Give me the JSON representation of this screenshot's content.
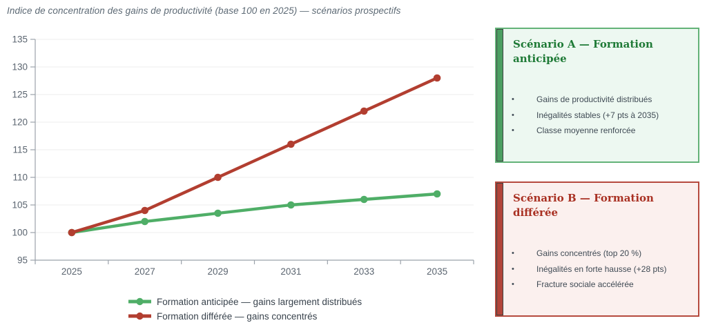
{
  "chart_data": {
    "type": "line",
    "title": "Indice de concentration des gains de productivité (base 100 en 2025) — scénarios prospectifs",
    "categories": [
      "2025",
      "2027",
      "2029",
      "2031",
      "2033",
      "2035"
    ],
    "series": [
      {
        "name": "Formation anticipée — gains largement distribués",
        "values": [
          100,
          102,
          103.5,
          105,
          106,
          107
        ],
        "color": "#4fae67"
      },
      {
        "name": "Formation différée — gains concentrés",
        "values": [
          100,
          104,
          110,
          116,
          122,
          128
        ],
        "color": "#b23e30"
      }
    ],
    "ylim": [
      95,
      135
    ],
    "ytick_step": 5,
    "grid": true,
    "legend_position": "bottom-center"
  },
  "colors": {
    "grid": "#ececec",
    "axis": "#9ba2ab",
    "tick_labels": "#5b6570",
    "legend_text": "#39434d",
    "chart_title": "#5d6a75"
  },
  "ui": {
    "bullet": "•"
  },
  "panels": [
    {
      "id": "scenario-a",
      "title": "Scénario A — Formation anticipée",
      "bullets": [
        "Gains de productivité distribués",
        "Inégalités stables (+7 pts à 2035)",
        "Classe moyenne renforcée"
      ],
      "colors": {
        "background": "#edf8f1",
        "border": "#62b277",
        "accent_bar": "#4c9f62",
        "title": "#1e7a36",
        "text": "#3f4a54"
      }
    },
    {
      "id": "scenario-b",
      "title": "Scénario B — Formation différée",
      "bullets": [
        "Gains concentrés (top 20 %)",
        "Inégalités en forte hausse (+28 pts)",
        "Fracture sociale accélérée"
      ],
      "colors": {
        "background": "#fbf0ee",
        "border": "#b5493d",
        "accent_bar": "#b2453a",
        "title": "#a93123",
        "text": "#3f4a54"
      }
    }
  ]
}
